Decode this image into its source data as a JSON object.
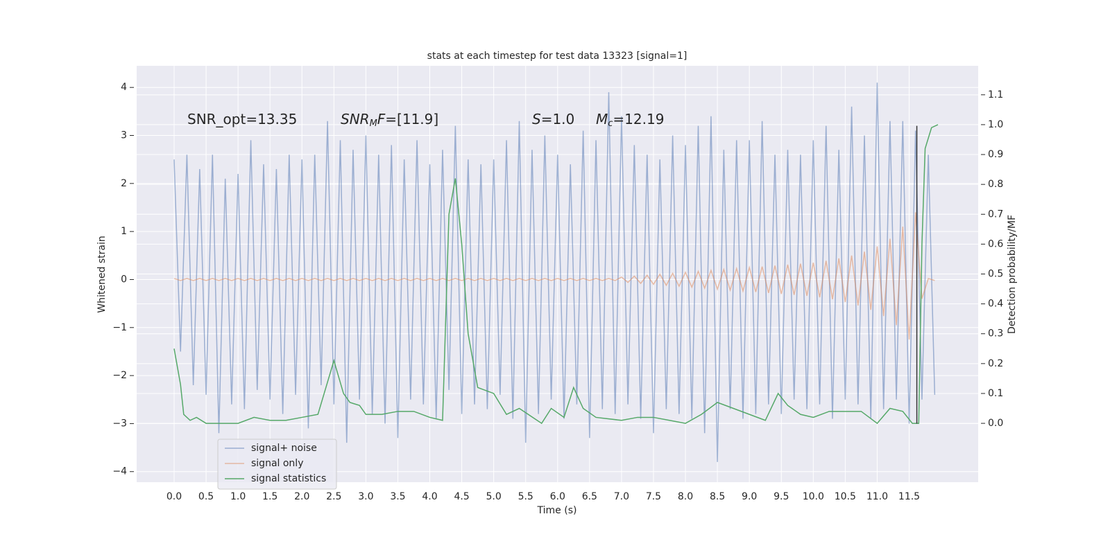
{
  "chart_data": {
    "type": "line",
    "title": "stats at each timestep for test data 13323 [signal=1]",
    "xlabel": "Time (s)",
    "ylabel": "Whitened strain",
    "y2label": "Detection probability/MF",
    "xlim": [
      -0.586,
      12.58
    ],
    "ylim": [
      -4.22,
      4.45
    ],
    "y2lim": [
      -0.197,
      1.197
    ],
    "xticks": [
      {
        "value": 0,
        "label": "0.0"
      },
      {
        "value": 0.5,
        "label": "0.5"
      },
      {
        "value": 1,
        "label": "1.0"
      },
      {
        "value": 1.5,
        "label": "1.5"
      },
      {
        "value": 2,
        "label": "2.0"
      },
      {
        "value": 2.5,
        "label": "2.5"
      },
      {
        "value": 3,
        "label": "3.0"
      },
      {
        "value": 3.5,
        "label": "3.5"
      },
      {
        "value": 4,
        "label": "4.0"
      },
      {
        "value": 4.5,
        "label": "4.5"
      },
      {
        "value": 5,
        "label": "5.0"
      },
      {
        "value": 5.5,
        "label": "5.5"
      },
      {
        "value": 6,
        "label": "6.0"
      },
      {
        "value": 6.5,
        "label": "6.5"
      },
      {
        "value": 7,
        "label": "7.0"
      },
      {
        "value": 7.5,
        "label": "7.5"
      },
      {
        "value": 8,
        "label": "8.0"
      },
      {
        "value": 8.5,
        "label": "8.5"
      },
      {
        "value": 9,
        "label": "9.0"
      },
      {
        "value": 9.5,
        "label": "9.5"
      },
      {
        "value": 10,
        "label": "10.0"
      },
      {
        "value": 10.5,
        "label": "10.5"
      },
      {
        "value": 11,
        "label": "11.0"
      },
      {
        "value": 11.5,
        "label": "11.5"
      }
    ],
    "yticks": [
      {
        "value": -4,
        "label": "−4"
      },
      {
        "value": -3,
        "label": "−3"
      },
      {
        "value": -2,
        "label": "−2"
      },
      {
        "value": -1,
        "label": "−1"
      },
      0,
      1,
      2,
      3,
      4
    ],
    "y2ticks": [
      {
        "value": 0,
        "label": "0.0"
      },
      {
        "value": 0.1,
        "label": "0.1"
      },
      {
        "value": 0.2,
        "label": "0.2"
      },
      {
        "value": 0.3,
        "label": "0.3"
      },
      {
        "value": 0.4,
        "label": "0.4"
      },
      {
        "value": 0.5,
        "label": "0.5"
      },
      {
        "value": 0.6,
        "label": "0.6"
      },
      {
        "value": 0.7,
        "label": "0.7"
      },
      {
        "value": 0.8,
        "label": "0.8"
      },
      {
        "value": 0.9,
        "label": "0.9"
      },
      {
        "value": 1,
        "label": "1.0"
      },
      {
        "value": 1.1,
        "label": "1.1"
      }
    ],
    "grid": true,
    "legend": "lower left",
    "series": [
      {
        "name": "signal+ noise",
        "color": "#4c72b0",
        "opacity": 0.5,
        "x": [
          0,
          0.1,
          0.2,
          0.3,
          0.4,
          0.5,
          0.6,
          0.7,
          0.8,
          0.9,
          1,
          1.1,
          1.2,
          1.3,
          1.4,
          1.5,
          1.6,
          1.7,
          1.8,
          1.9,
          2,
          2.1,
          2.2,
          2.3,
          2.4,
          2.5,
          2.6,
          2.7,
          2.8,
          2.9,
          3,
          3.1,
          3.2,
          3.3,
          3.4,
          3.5,
          3.6,
          3.7,
          3.8,
          3.9,
          4,
          4.1,
          4.2,
          4.3,
          4.4,
          4.5,
          4.6,
          4.7,
          4.8,
          4.9,
          5,
          5.1,
          5.2,
          5.3,
          5.4,
          5.5,
          5.6,
          5.7,
          5.8,
          5.9,
          6,
          6.1,
          6.2,
          6.3,
          6.4,
          6.5,
          6.6,
          6.7,
          6.8,
          6.9,
          7,
          7.1,
          7.2,
          7.3,
          7.4,
          7.5,
          7.6,
          7.7,
          7.8,
          7.9,
          8,
          8.1,
          8.2,
          8.3,
          8.4,
          8.5,
          8.6,
          8.7,
          8.8,
          8.9,
          9,
          9.1,
          9.2,
          9.3,
          9.4,
          9.5,
          9.6,
          9.7,
          9.8,
          9.9,
          10,
          10.1,
          10.2,
          10.3,
          10.4,
          10.5,
          10.6,
          10.7,
          10.8,
          10.9,
          11,
          11.1,
          11.2,
          11.3,
          11.4,
          11.5,
          11.6,
          11.7,
          11.8,
          11.9
        ],
        "values": [
          2.5,
          -1.5,
          2.6,
          -2.2,
          2.3,
          -2.4,
          2.6,
          -3.2,
          2.1,
          -2.6,
          2.2,
          -2.7,
          2.9,
          -2.3,
          2.4,
          -2.5,
          2.3,
          -2.8,
          2.6,
          -2.4,
          2.5,
          -3.1,
          2.6,
          -2.2,
          3.3,
          -2.6,
          2.9,
          -3.4,
          2.7,
          -2.5,
          3.0,
          -2.8,
          2.6,
          -3.0,
          2.8,
          -3.3,
          2.5,
          -2.5,
          2.9,
          -2.6,
          2.4,
          -2.9,
          2.7,
          -2.3,
          3.2,
          -2.8,
          2.5,
          -2.6,
          2.4,
          -2.7,
          2.5,
          -2.4,
          2.9,
          -2.9,
          3.3,
          -3.4,
          2.7,
          -2.8,
          3.0,
          -2.5,
          2.6,
          -2.9,
          2.4,
          -2.6,
          3.1,
          -3.3,
          2.9,
          -2.7,
          3.9,
          -2.8,
          3.4,
          -2.6,
          2.8,
          -2.9,
          2.6,
          -3.2,
          2.5,
          -2.7,
          3.0,
          -2.8,
          2.8,
          -2.9,
          3.2,
          -3.2,
          3.4,
          -3.8,
          2.7,
          -2.7,
          2.9,
          -2.9,
          2.9,
          -2.8,
          3.3,
          -2.6,
          2.6,
          -2.8,
          2.7,
          -2.5,
          2.6,
          -2.7,
          2.9,
          -2.6,
          3.2,
          -2.9,
          2.7,
          -2.5,
          3.6,
          -2.6,
          3.0,
          -2.9,
          4.1,
          -2.7,
          3.3,
          -2.5,
          3.3,
          -3.0,
          3.1,
          -2.5,
          2.6,
          -2.4
        ]
      },
      {
        "name": "signal only",
        "color": "#dd8452",
        "opacity": 0.5,
        "x": [
          0,
          0.1,
          0.2,
          0.3,
          0.4,
          0.5,
          0.6,
          0.7,
          0.8,
          0.9,
          1,
          1.1,
          1.2,
          1.3,
          1.4,
          1.5,
          1.6,
          1.7,
          1.8,
          1.9,
          2,
          2.1,
          2.2,
          2.3,
          2.4,
          2.5,
          2.6,
          2.7,
          2.8,
          2.9,
          3,
          3.1,
          3.2,
          3.3,
          3.4,
          3.5,
          3.6,
          3.7,
          3.8,
          3.9,
          4,
          4.1,
          4.2,
          4.3,
          4.4,
          4.5,
          4.6,
          4.7,
          4.8,
          4.9,
          5,
          5.1,
          5.2,
          5.3,
          5.4,
          5.5,
          5.6,
          5.7,
          5.8,
          5.9,
          6,
          6.1,
          6.2,
          6.3,
          6.4,
          6.5,
          6.6,
          6.7,
          6.8,
          6.9,
          7,
          7.1,
          7.2,
          7.3,
          7.4,
          7.5,
          7.6,
          7.7,
          7.8,
          7.9,
          8,
          8.1,
          8.2,
          8.3,
          8.4,
          8.5,
          8.6,
          8.7,
          8.8,
          8.9,
          9,
          9.1,
          9.2,
          9.3,
          9.4,
          9.5,
          9.6,
          9.7,
          9.8,
          9.9,
          10,
          10.1,
          10.2,
          10.3,
          10.4,
          10.5,
          10.6,
          10.7,
          10.8,
          10.9,
          11,
          11.1,
          11.2,
          11.3,
          11.4,
          11.5,
          11.6,
          11.7,
          11.8,
          11.9
        ],
        "values": [
          0.02,
          -0.02,
          0.02,
          -0.02,
          0.02,
          -0.02,
          0.02,
          -0.02,
          0.02,
          -0.02,
          0.02,
          -0.02,
          0.02,
          -0.02,
          0.02,
          -0.02,
          0.02,
          -0.02,
          0.02,
          -0.02,
          0.02,
          -0.02,
          0.02,
          -0.02,
          0.02,
          -0.02,
          0.02,
          -0.02,
          0.02,
          -0.02,
          0.02,
          -0.02,
          0.02,
          -0.02,
          0.02,
          -0.02,
          0.02,
          -0.02,
          0.02,
          -0.02,
          0.02,
          -0.02,
          0.02,
          -0.02,
          0.02,
          -0.02,
          0.02,
          -0.02,
          0.02,
          -0.02,
          0.02,
          -0.02,
          0.02,
          -0.02,
          0.02,
          -0.02,
          0.02,
          -0.02,
          0.02,
          -0.02,
          0.02,
          -0.02,
          0.02,
          -0.02,
          0.02,
          -0.02,
          0.02,
          -0.02,
          0.02,
          -0.02,
          0.05,
          -0.06,
          0.07,
          -0.08,
          0.09,
          -0.1,
          0.11,
          -0.12,
          0.13,
          -0.14,
          0.15,
          -0.16,
          0.17,
          -0.18,
          0.19,
          -0.2,
          0.21,
          -0.22,
          0.23,
          -0.24,
          0.25,
          -0.26,
          0.27,
          -0.28,
          0.29,
          -0.3,
          0.31,
          -0.32,
          0.33,
          -0.34,
          0.35,
          -0.37,
          0.39,
          -0.41,
          0.44,
          -0.47,
          0.5,
          -0.54,
          0.58,
          -0.63,
          0.69,
          -0.76,
          0.85,
          -0.95,
          1.1,
          -1.25,
          1.4,
          -0.4,
          0.02,
          -0.02
        ]
      },
      {
        "name": "signal statistics",
        "color": "#55a868",
        "axis": "y2",
        "x": [
          0,
          0.1,
          0.15,
          0.25,
          0.35,
          0.5,
          0.75,
          1,
          1.25,
          1.5,
          1.75,
          2,
          2.25,
          2.5,
          2.65,
          2.75,
          2.9,
          3,
          3.25,
          3.5,
          3.75,
          4,
          4.2,
          4.3,
          4.4,
          4.5,
          4.6,
          4.75,
          5,
          5.2,
          5.4,
          5.75,
          5.9,
          6.1,
          6.25,
          6.4,
          6.6,
          7,
          7.25,
          7.5,
          7.75,
          8,
          8.25,
          8.5,
          8.75,
          9,
          9.25,
          9.45,
          9.6,
          9.8,
          10,
          10.25,
          10.5,
          10.75,
          11,
          11.2,
          11.4,
          11.55,
          11.65,
          11.7,
          11.75,
          11.85,
          11.95
        ],
        "values": [
          0.25,
          0.13,
          0.03,
          0.01,
          0.02,
          0,
          0,
          0,
          0.02,
          0.01,
          0.01,
          0.02,
          0.03,
          0.21,
          0.1,
          0.07,
          0.06,
          0.03,
          0.03,
          0.04,
          0.04,
          0.02,
          0.01,
          0.7,
          0.82,
          0.6,
          0.3,
          0.12,
          0.1,
          0.03,
          0.05,
          0,
          0.05,
          0.02,
          0.12,
          0.05,
          0.02,
          0.01,
          0.02,
          0.02,
          0.01,
          0,
          0.03,
          0.07,
          0.05,
          0.03,
          0.01,
          0.1,
          0.06,
          0.03,
          0.02,
          0.04,
          0.04,
          0.04,
          0,
          0.05,
          0.04,
          0,
          0,
          0.6,
          0.92,
          0.99,
          1
        ]
      }
    ],
    "vline": {
      "x": 11.62,
      "ymin": -3,
      "ymax": 3.2,
      "color": "#333333"
    },
    "annotations": [
      [
        {
          "text": "SNR_opt=13.35",
          "style": "normal"
        }
      ],
      [
        {
          "text": "SNR",
          "style": "italic"
        },
        {
          "text": "M",
          "style": "sub"
        },
        {
          "text": "F",
          "style": "italic"
        },
        {
          "text": "=[11.9]",
          "style": "normal"
        }
      ],
      [
        {
          "text": "S",
          "style": "italic"
        },
        {
          "text": "=1.0",
          "style": "normal"
        }
      ],
      [
        {
          "text": "M",
          "style": "italic"
        },
        {
          "text": "c",
          "style": "sub"
        },
        {
          "text": "=12.19",
          "style": "normal"
        }
      ]
    ]
  }
}
